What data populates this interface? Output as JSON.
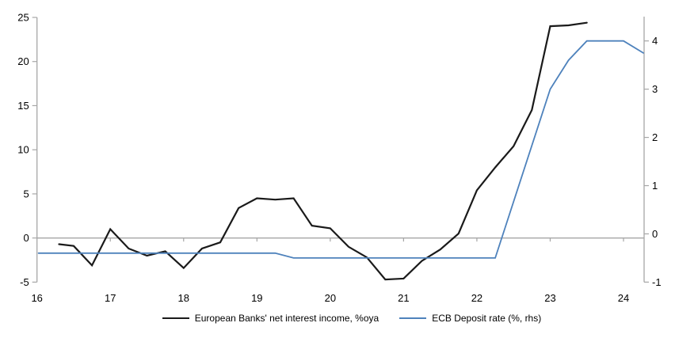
{
  "chart_data": {
    "type": "line",
    "title": "",
    "x_axis": {
      "ticks": [
        16,
        17,
        18,
        19,
        20,
        21,
        22,
        23,
        24
      ],
      "tick_labels": [
        "16",
        "17",
        "18",
        "19",
        "20",
        "21",
        "22",
        "23",
        "24"
      ],
      "range": [
        16,
        24.28
      ],
      "baseline_value": 0
    },
    "y_axis_left": {
      "ticks": [
        -5,
        0,
        5,
        10,
        15,
        20,
        25
      ],
      "tick_labels": [
        "-5",
        "0",
        "5",
        "10",
        "15",
        "20",
        "25"
      ],
      "range": [
        -5,
        25
      ]
    },
    "y_axis_right": {
      "ticks": [
        -1,
        0,
        1,
        2,
        3,
        4
      ],
      "tick_labels": [
        "-1",
        "0",
        "1",
        "2",
        "3",
        "4"
      ],
      "range": [
        -1,
        4.5
      ]
    },
    "grid": "zero-line-only",
    "legend_position": "bottom",
    "axis_color": "#a6a6a6",
    "series": [
      {
        "name": "European Banks' net interest income, %oya",
        "axis": "left",
        "color": "#1a1a1a",
        "width": 2.2,
        "points": [
          [
            16.3,
            -0.7
          ],
          [
            16.5,
            -0.9
          ],
          [
            16.75,
            -3.1
          ],
          [
            17.0,
            1.0
          ],
          [
            17.25,
            -1.2
          ],
          [
            17.5,
            -2.0
          ],
          [
            17.75,
            -1.5
          ],
          [
            18.0,
            -3.4
          ],
          [
            18.25,
            -1.2
          ],
          [
            18.5,
            -0.5
          ],
          [
            18.75,
            3.4
          ],
          [
            19.0,
            4.5
          ],
          [
            19.25,
            4.35
          ],
          [
            19.5,
            4.5
          ],
          [
            19.75,
            1.4
          ],
          [
            20.0,
            1.1
          ],
          [
            20.25,
            -1.0
          ],
          [
            20.5,
            -2.2
          ],
          [
            20.75,
            -4.7
          ],
          [
            21.0,
            -4.6
          ],
          [
            21.25,
            -2.6
          ],
          [
            21.5,
            -1.3
          ],
          [
            21.75,
            0.5
          ],
          [
            22.0,
            5.4
          ],
          [
            22.25,
            8.0
          ],
          [
            22.5,
            10.4
          ],
          [
            22.75,
            14.5
          ],
          [
            23.0,
            24.0
          ],
          [
            23.25,
            24.1
          ],
          [
            23.5,
            24.4
          ]
        ]
      },
      {
        "name": "ECB Deposit rate (%, rhs)",
        "axis": "right",
        "color": "#4e82bc",
        "width": 1.8,
        "points": [
          [
            16.02,
            -0.4
          ],
          [
            19.25,
            -0.4
          ],
          [
            19.5,
            -0.5
          ],
          [
            22.25,
            -0.5
          ],
          [
            23.0,
            3.0
          ],
          [
            23.25,
            3.6
          ],
          [
            23.5,
            4.0
          ],
          [
            24.0,
            4.0
          ],
          [
            24.27,
            3.75
          ]
        ]
      }
    ]
  }
}
